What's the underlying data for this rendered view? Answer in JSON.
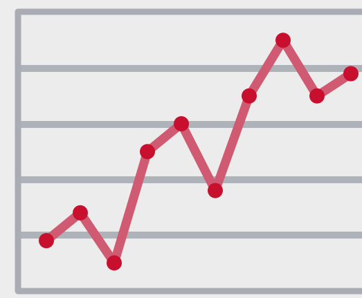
{
  "colors": {
    "background": "#ededed",
    "plot_fill": "#ececec",
    "frame": "#a9adb3",
    "gridline": "#aeb3b9",
    "line": "#cf5a72",
    "marker": "#c8102e"
  },
  "chart_data": {
    "type": "line",
    "title": "",
    "xlabel": "",
    "ylabel": "",
    "grid": true,
    "legend": "none",
    "ylim": [
      0,
      5
    ],
    "gridlines_y": [
      1,
      2,
      3,
      4
    ],
    "x": [
      1,
      2,
      3,
      4,
      5,
      6,
      7,
      8,
      9,
      10
    ],
    "series": [
      {
        "values": [
          0.9,
          1.4,
          0.5,
          2.5,
          3.0,
          1.8,
          3.5,
          4.5,
          3.5,
          3.9
        ]
      }
    ]
  }
}
